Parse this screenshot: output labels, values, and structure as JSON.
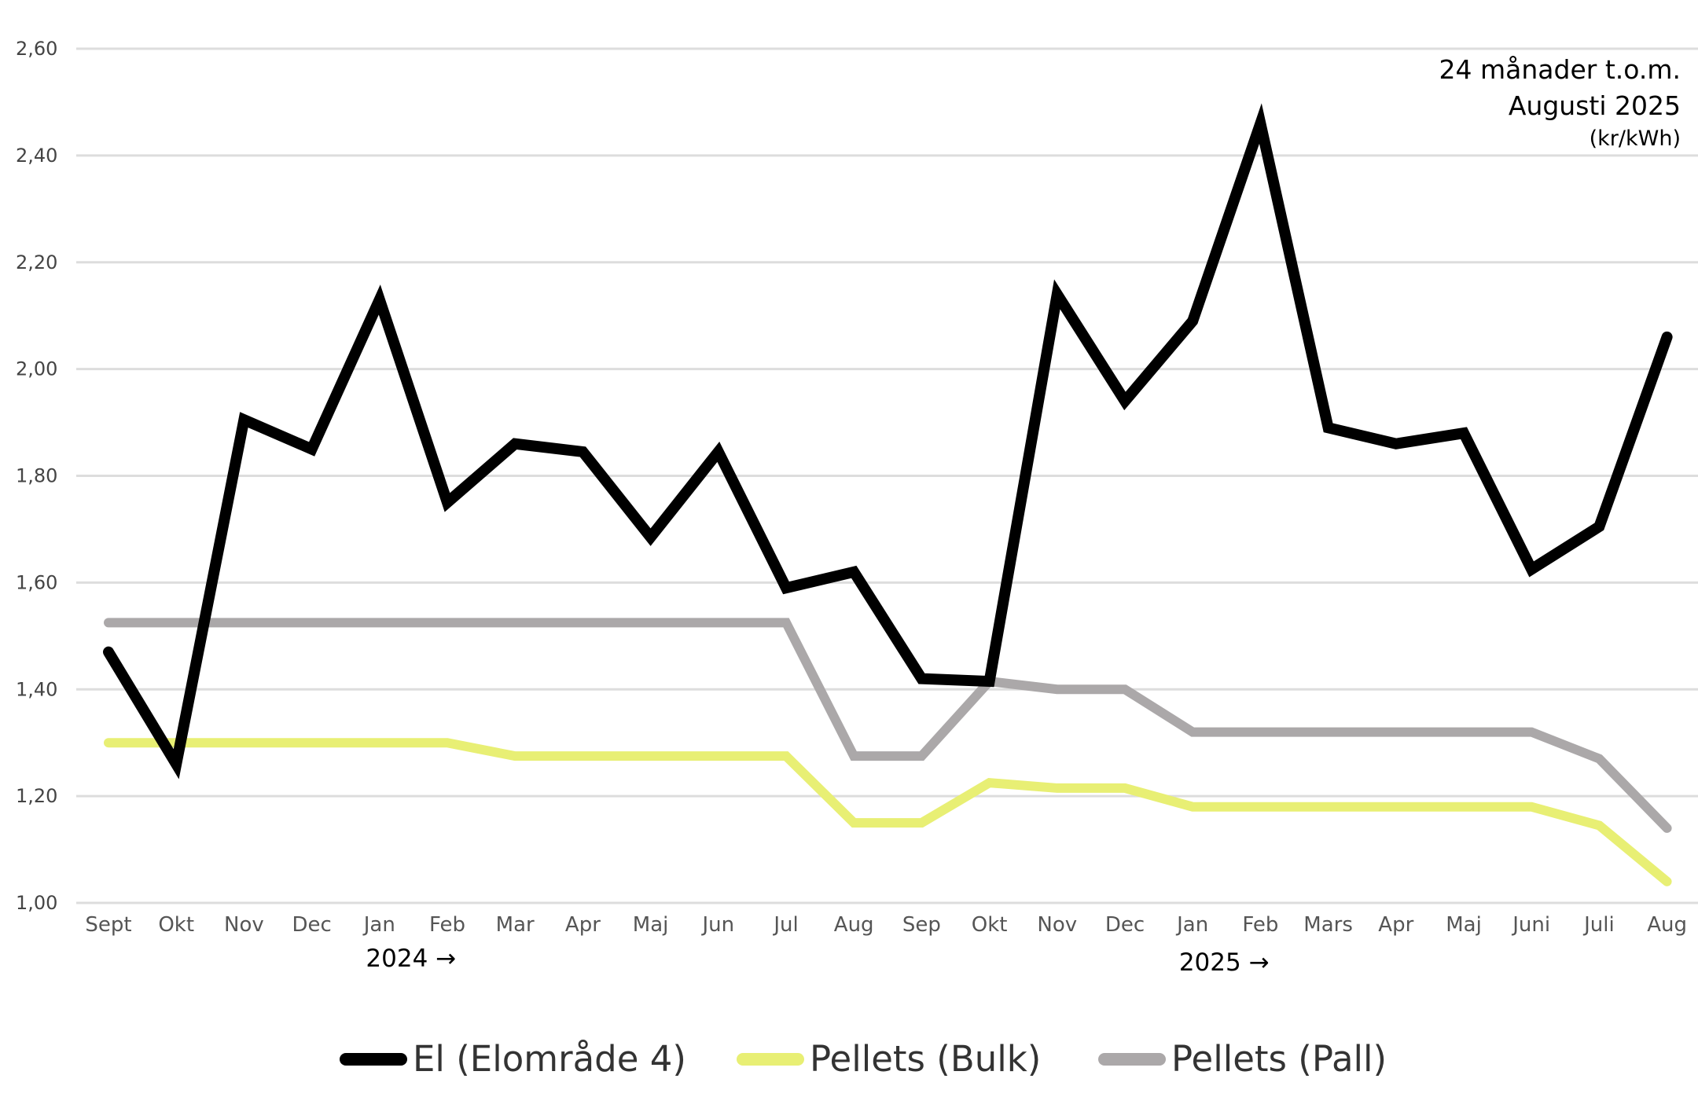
{
  "chart_data": {
    "type": "line",
    "title": "",
    "annotation": [
      "24 månader t.o.m.",
      "Augusti 2025",
      "(kr/kWh)"
    ],
    "xlabel": "",
    "ylabel": "kr/kWh",
    "ylim": [
      1.0,
      2.6
    ],
    "yticks": [
      "1,00",
      "1,20",
      "1,40",
      "1,60",
      "1,80",
      "2,00",
      "2,20",
      "2,40",
      "2,60"
    ],
    "ytick_values": [
      1.0,
      1.2,
      1.4,
      1.6,
      1.8,
      2.0,
      2.2,
      2.4,
      2.6
    ],
    "grid": true,
    "categories": [
      "Sept",
      "Okt",
      "Nov",
      "Dec",
      "Jan",
      "Feb",
      "Mar",
      "Apr",
      "Maj",
      "Jun",
      "Jul",
      "Aug",
      "Sep",
      "Okt",
      "Nov",
      "Dec",
      "Jan",
      "Feb",
      "Mars",
      "Apr",
      "Maj",
      "Juni",
      "Juli",
      "Aug"
    ],
    "year_labels": [
      {
        "label": "2024 →",
        "category_index": 4
      },
      {
        "label": "2025 →",
        "category_index": 16
      }
    ],
    "legend_placement": "bottom-center",
    "series": [
      {
        "name": "El (Elområde 4)",
        "color": "#000000",
        "values": [
          1.47,
          1.26,
          1.905,
          1.85,
          2.13,
          1.75,
          1.86,
          1.845,
          1.685,
          1.845,
          1.59,
          1.62,
          1.42,
          1.415,
          2.14,
          1.94,
          2.09,
          2.46,
          1.89,
          1.86,
          1.88,
          1.625,
          1.705,
          2.06
        ]
      },
      {
        "name": "Pellets (Bulk)",
        "color": "#e8ef74",
        "values": [
          1.3,
          1.3,
          1.3,
          1.3,
          1.3,
          1.3,
          1.275,
          1.275,
          1.275,
          1.275,
          1.275,
          1.15,
          1.15,
          1.225,
          1.215,
          1.215,
          1.18,
          1.18,
          1.18,
          1.18,
          1.18,
          1.18,
          1.145,
          1.04
        ]
      },
      {
        "name": "Pellets (Pall)",
        "color": "#aba8a9",
        "values": [
          1.525,
          1.525,
          1.525,
          1.525,
          1.525,
          1.525,
          1.525,
          1.525,
          1.525,
          1.525,
          1.525,
          1.275,
          1.275,
          1.415,
          1.4,
          1.4,
          1.32,
          1.32,
          1.32,
          1.32,
          1.32,
          1.32,
          1.27,
          1.14
        ]
      }
    ]
  }
}
